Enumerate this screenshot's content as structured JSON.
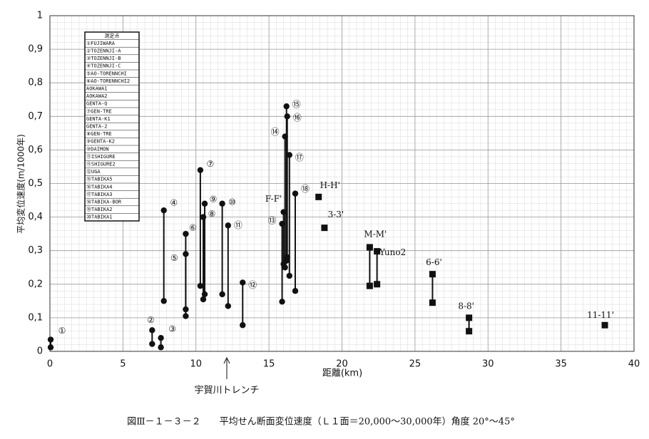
{
  "chart_data": {
    "type": "range",
    "title": "図Ⅲ－１－３－２　　平均せん断面変位速度（Ｌ１面＝20,000～30,000年）角度 20°～45°",
    "x_label": "距離(km)",
    "y_label": "平均変位速度(m/1000年)",
    "annotation": "宇賀川トレンチ",
    "xlim": [
      0,
      40
    ],
    "xticks": [
      0,
      5,
      10,
      15,
      20,
      25,
      30,
      35,
      40
    ],
    "ylim": [
      0,
      1
    ],
    "yticks": [
      0,
      {
        "value": 0.1,
        "label": "0,1"
      },
      {
        "value": 0.2,
        "label": "0,2"
      },
      {
        "value": 0.3,
        "label": "0,3"
      },
      {
        "value": 0.4,
        "label": "0,4"
      },
      {
        "value": 0.5,
        "label": "0,5"
      },
      {
        "value": 0.6,
        "label": "0,6"
      },
      {
        "value": 0.7,
        "label": "0,7"
      },
      {
        "value": 0.8,
        "label": "0,8"
      },
      {
        "value": 0.9,
        "label": "0,9"
      },
      1
    ],
    "grid": true,
    "legend_title": "測定点",
    "legend_entries": [
      "①FUJIWARA",
      "②TOZENNJI-A",
      "③TOZENNJI-B",
      "④TOZENNJI-C",
      "⑤AO-TORENNCHI",
      "⑥AO-TORENNCHI2",
      "AOKAWA1",
      "AOKAWA2",
      "GENTA-Q",
      "⑦GEN-TRE",
      "GENTA-K1",
      "GENTA-2",
      "⑧GEN-TRE",
      "⑨GENTA-K2",
      "⑩DAIMON",
      "⑪ISHIGURE",
      "⑪SHIGURE2",
      "⑫UGA",
      "⑮TABIKA5",
      "⑯TABIKA4",
      "⑰TABIKA3",
      "⑱TABIKA-BOR",
      "⑲TABIKA2",
      "⑳TABIKA1"
    ],
    "color": "#111111",
    "series": [
      {
        "name": "①",
        "marker": "circle",
        "x": 0.05,
        "values": [
          0.012,
          0.035
        ]
      },
      {
        "name": "②",
        "marker": "circle",
        "x": 7.0,
        "values": [
          0.022,
          0.063
        ]
      },
      {
        "name": "③",
        "marker": "circle",
        "x": 7.6,
        "values": [
          0.012,
          0.04
        ]
      },
      {
        "name": "④",
        "marker": "circle",
        "x": 7.8,
        "values": [
          0.15,
          0.42
        ]
      },
      {
        "name": "⑤",
        "marker": "circle",
        "x": 9.3,
        "values": [
          0.125,
          0.29
        ]
      },
      {
        "name": "⑥",
        "marker": "circle",
        "x": 9.3,
        "values": [
          0.105,
          0.35
        ]
      },
      {
        "name": "⑦",
        "marker": "circle",
        "x": 10.3,
        "values": [
          0.195,
          0.54
        ]
      },
      {
        "name": "⑧",
        "marker": "circle",
        "x": 10.5,
        "values": [
          0.155,
          0.4
        ]
      },
      {
        "name": "⑨",
        "marker": "circle",
        "x": 10.6,
        "values": [
          0.17,
          0.44
        ]
      },
      {
        "name": "⑩",
        "marker": "circle",
        "x": 11.8,
        "values": [
          0.17,
          0.44
        ]
      },
      {
        "name": "⑪",
        "marker": "circle",
        "x": 12.2,
        "values": [
          0.135,
          0.375
        ]
      },
      {
        "name": "⑫",
        "marker": "circle",
        "x": 13.2,
        "values": [
          0.078,
          0.205
        ]
      },
      {
        "name": "⑬",
        "marker": "circle",
        "x": 15.9,
        "values": [
          0.148,
          0.38
        ]
      },
      {
        "name": "F-F'",
        "marker": "circle",
        "x": 16.0,
        "values": [
          0.26,
          0.415
        ]
      },
      {
        "name": "⑭",
        "marker": "circle",
        "x": 16.1,
        "values": [
          0.25,
          0.64
        ]
      },
      {
        "name": "⑮",
        "marker": "circle",
        "x": 16.2,
        "values": [
          0.27,
          0.73
        ]
      },
      {
        "name": "⑯",
        "marker": "circle",
        "x": 16.25,
        "values": [
          0.28,
          0.7
        ]
      },
      {
        "name": "⑰",
        "marker": "circle",
        "x": 16.4,
        "values": [
          0.225,
          0.585
        ]
      },
      {
        "name": "⑱",
        "marker": "circle",
        "x": 16.8,
        "values": [
          0.18,
          0.47
        ]
      },
      {
        "name": "H-H'",
        "marker": "square",
        "x": 18.4,
        "values": [
          0.46
        ]
      },
      {
        "name": "3-3'",
        "marker": "square",
        "x": 18.8,
        "values": [
          0.368
        ]
      },
      {
        "name": "M-M'",
        "marker": "square",
        "x": 21.9,
        "values": [
          0.195,
          0.31
        ]
      },
      {
        "name": "Yuno2",
        "marker": "square",
        "x": 22.4,
        "values": [
          0.2,
          0.298
        ]
      },
      {
        "name": "6-6'",
        "marker": "square",
        "x": 26.2,
        "values": [
          0.145,
          0.23
        ]
      },
      {
        "name": "8-8'",
        "marker": "square",
        "x": 28.7,
        "values": [
          0.06,
          0.1
        ]
      },
      {
        "name": "11-11'",
        "marker": "square",
        "x": 38.0,
        "values": [
          0.078
        ]
      }
    ]
  }
}
